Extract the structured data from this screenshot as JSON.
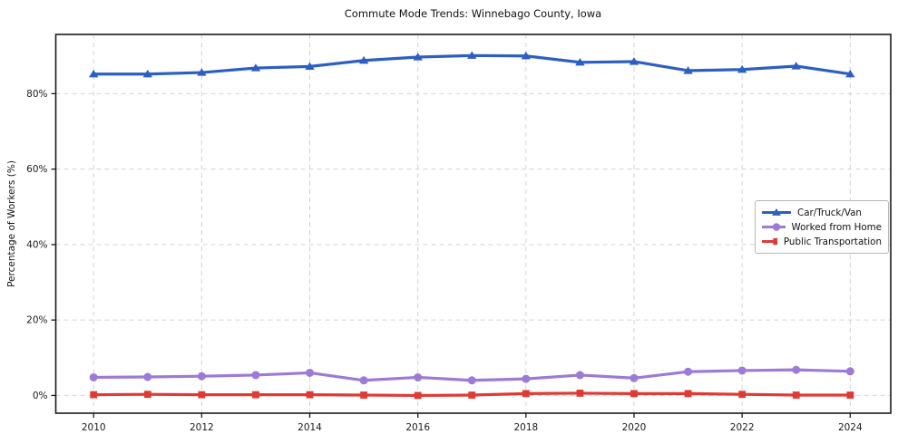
{
  "chart_data": {
    "type": "line",
    "title": "Commute Mode Trends: Winnebago County, Iowa",
    "xlabel": "",
    "ylabel": "Percentage of Workers (%)",
    "x": [
      2010,
      2011,
      2012,
      2013,
      2014,
      2015,
      2016,
      2017,
      2018,
      2019,
      2020,
      2021,
      2022,
      2023,
      2024
    ],
    "series": [
      {
        "name": "Car/Truck/Van",
        "color": "#2b5fc2",
        "marker": "triangle",
        "values": [
          85.2,
          85.2,
          85.6,
          86.8,
          87.2,
          88.8,
          89.7,
          90.1,
          90.0,
          88.3,
          88.5,
          86.1,
          86.4,
          87.3,
          85.2
        ]
      },
      {
        "name": "Worked from Home",
        "color": "#9c7ad6",
        "marker": "circle",
        "values": [
          4.8,
          4.9,
          5.1,
          5.4,
          6.0,
          4.0,
          4.8,
          4.0,
          4.4,
          5.4,
          4.6,
          6.3,
          6.6,
          6.8,
          6.4
        ]
      },
      {
        "name": "Public Transportation",
        "color": "#e03a34",
        "marker": "square",
        "values": [
          0.2,
          0.3,
          0.2,
          0.2,
          0.2,
          0.1,
          0.0,
          0.1,
          0.5,
          0.6,
          0.5,
          0.5,
          0.3,
          0.1,
          0.1
        ]
      }
    ],
    "xlim": [
      2009.3,
      2024.75
    ],
    "ylim": [
      -4.7,
      95.7
    ],
    "xticks": [
      2010,
      2012,
      2014,
      2016,
      2018,
      2020,
      2022,
      2024
    ],
    "yticks": [
      0,
      20,
      40,
      60,
      80
    ],
    "ytick_suffix": "%",
    "grid": true,
    "legend_position": "center-right"
  }
}
